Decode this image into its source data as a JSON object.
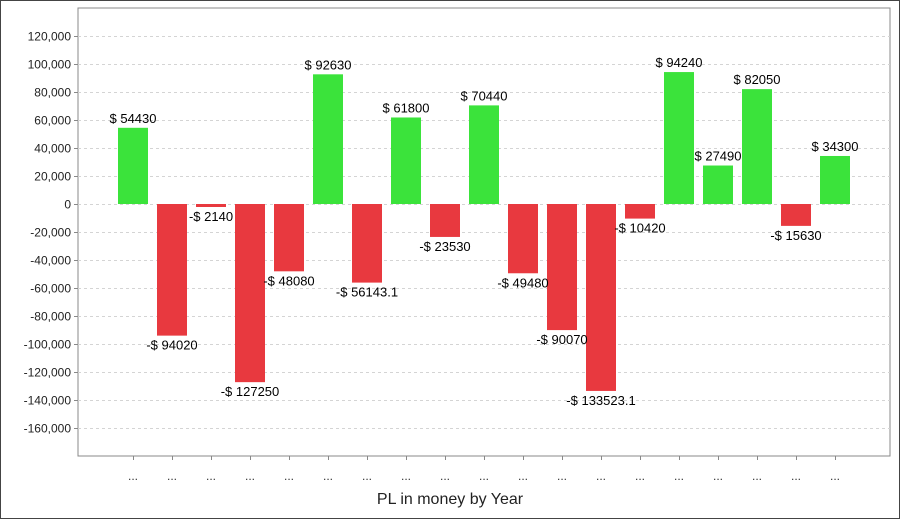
{
  "chart_data": {
    "type": "bar",
    "xlabel": "PL in money by Year",
    "ylabel": "",
    "ylim": [
      -180000,
      140000
    ],
    "yticks": [
      120000,
      100000,
      80000,
      60000,
      40000,
      20000,
      0,
      -20000,
      -40000,
      -60000,
      -80000,
      -100000,
      -120000,
      -140000,
      -160000
    ],
    "ytick_labels": [
      "120,000",
      "100,000",
      "80,000",
      "60,000",
      "40,000",
      "20,000",
      "0",
      "-20,000",
      "-40,000",
      "-60,000",
      "-80,000",
      "-100,000",
      "-120,000",
      "-140,000",
      "-160,000"
    ],
    "categories": [
      "...",
      "...",
      "...",
      "...",
      "...",
      "...",
      "...",
      "...",
      "...",
      "...",
      "...",
      "...",
      "...",
      "...",
      "...",
      "...",
      "...",
      "...",
      "..."
    ],
    "values": [
      54430,
      -94020,
      -2140,
      -127250,
      -48080,
      92630,
      -56143.1,
      61800,
      -23530,
      70440,
      -49480,
      -90070,
      -133523.1,
      -10420,
      94240,
      27490,
      82050,
      -15630,
      34300
    ],
    "data_labels": [
      "$ 54430",
      "-$ 94020",
      "-$ 2140",
      "-$ 127250",
      "-$ 48080",
      "$ 92630",
      "-$ 56143.1",
      "$ 61800",
      "-$ 23530",
      "$ 70440",
      "-$ 49480",
      "-$ 90070",
      "-$ 133523.1",
      "-$ 10420",
      "$ 94240",
      "$ 27490",
      "$ 82050",
      "-$ 15630",
      "$ 34300"
    ],
    "grid": true,
    "colors": {
      "positive": "#3be33b",
      "negative": "#e8393f",
      "grid": "#d4d4d4",
      "axis": "#888888"
    }
  }
}
